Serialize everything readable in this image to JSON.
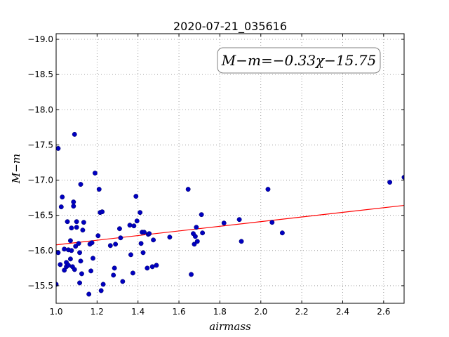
{
  "chart_data": {
    "type": "scatter",
    "title": "2020-07-21_035616",
    "xlabel": "airmass",
    "ylabel": "M−m",
    "xlim": [
      1.0,
      2.7
    ],
    "ylim": [
      -19.08,
      -15.25
    ],
    "y_inverted_order": "ticks increase downward in magnitude (−15.5 at top, −19.0 at bottom)",
    "xticks": [
      "1.0",
      "1.2",
      "1.4",
      "1.6",
      "1.8",
      "2.0",
      "2.2",
      "2.4",
      "2.6"
    ],
    "yticks": [
      "−15.5",
      "−16.0",
      "−16.5",
      "−17.0",
      "−17.5",
      "−18.0",
      "−18.5",
      "−19.0"
    ],
    "grid": true,
    "annotation": "M−m=−0.33χ−15.75",
    "fit": {
      "slope": -0.33,
      "intercept": -15.75,
      "color": "#ff0000"
    },
    "series": [
      {
        "marker_color": "#0000c0",
        "x": [
          1.0,
          1.01,
          1.02,
          1.025,
          1.03,
          1.04,
          1.04,
          1.05,
          1.05,
          1.055,
          1.06,
          1.06,
          1.07,
          1.07,
          1.075,
          1.075,
          1.08,
          1.085,
          1.085,
          1.09,
          1.09,
          1.095,
          1.1,
          1.1,
          1.11,
          1.115,
          1.115,
          1.12,
          1.12,
          1.125,
          1.13,
          1.135,
          1.16,
          1.165,
          1.17,
          1.175,
          1.18,
          1.19,
          1.205,
          1.21,
          1.215,
          1.22,
          1.225,
          1.23,
          1.265,
          1.28,
          1.285,
          1.29,
          1.31,
          1.315,
          1.325,
          1.36,
          1.365,
          1.375,
          1.38,
          1.39,
          1.395,
          1.41,
          1.415,
          1.42,
          1.425,
          1.43,
          1.445,
          1.45,
          1.455,
          1.47,
          1.475,
          1.49,
          1.555,
          1.645,
          1.66,
          1.67,
          1.675,
          1.68,
          1.685,
          1.69,
          1.71,
          1.715,
          1.82,
          1.895,
          1.905,
          2.035,
          2.055,
          2.105,
          2.63,
          2.7,
          1.01
        ],
        "y": [
          -15.52,
          -15.97,
          -15.8,
          -16.62,
          -16.76,
          -15.72,
          -16.02,
          -15.77,
          -15.83,
          -16.41,
          -15.79,
          -16.01,
          -15.88,
          -16.14,
          -16.0,
          -16.32,
          -15.77,
          -16.63,
          -16.69,
          -15.73,
          -17.65,
          -16.06,
          -16.33,
          -16.41,
          -16.1,
          -15.54,
          -15.97,
          -15.85,
          -16.94,
          -15.67,
          -16.29,
          -16.4,
          -15.38,
          -16.09,
          -15.71,
          -16.11,
          -15.89,
          -17.1,
          -16.21,
          -16.87,
          -16.54,
          -15.43,
          -16.55,
          -15.52,
          -16.07,
          -15.65,
          -15.75,
          -16.09,
          -16.31,
          -16.18,
          -15.56,
          -16.36,
          -15.94,
          -15.68,
          -16.35,
          -16.77,
          -16.42,
          -16.54,
          -16.1,
          -16.26,
          -15.97,
          -16.26,
          -15.75,
          -16.23,
          -16.24,
          -15.77,
          -16.15,
          -15.79,
          -16.19,
          -16.87,
          -15.66,
          -16.24,
          -16.09,
          -16.2,
          -16.33,
          -16.13,
          -16.51,
          -16.25,
          -16.39,
          -16.44,
          -16.13,
          -16.87,
          -16.4,
          -16.25,
          -16.97,
          -17.04,
          -17.45
        ]
      }
    ]
  }
}
